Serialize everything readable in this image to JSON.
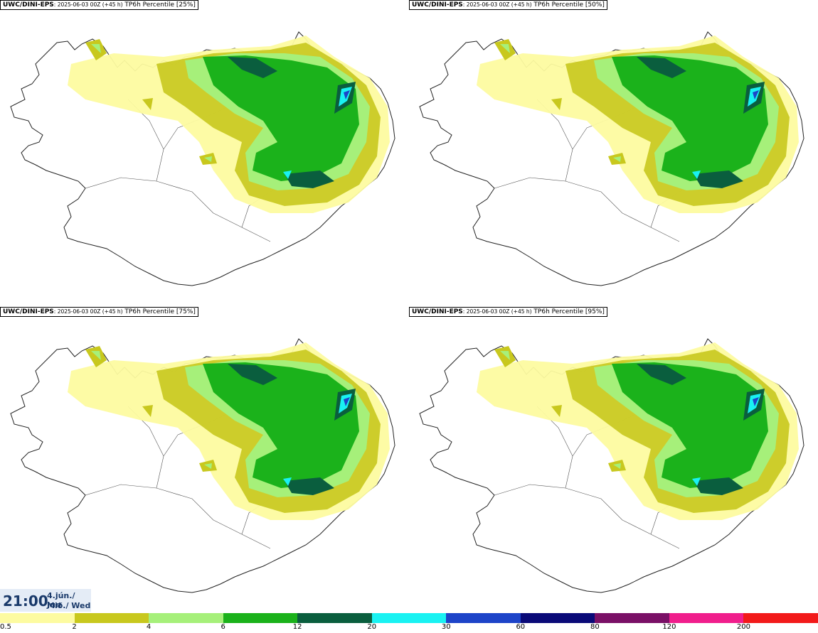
{
  "panels": [
    {
      "model": "UWC/DINI-EPS",
      "run": ": 2025-06-03 00Z (+45 h)",
      "field": " TP6h Percentile [25%]"
    },
    {
      "model": "UWC/DINI-EPS",
      "run": ": 2025-06-03 00Z (+45 h)",
      "field": " TP6h Percentile [50%]"
    },
    {
      "model": "UWC/DINI-EPS",
      "run": ": 2025-06-03 00Z (+45 h)",
      "field": " TP6h Percentile [75%]"
    },
    {
      "model": "UWC/DINI-EPS",
      "run": ": 2025-06-03 00Z (+45 h)",
      "field": " TP6h Percentile [95%]"
    }
  ],
  "valid_time": {
    "time": "21:00",
    "date": "4.jún./ Jun",
    "weekday": "Mið./ Wed"
  },
  "legend": {
    "labels": [
      "0.5",
      "2",
      "4",
      "6",
      "12",
      "20",
      "30",
      "60",
      "80",
      "120",
      "200"
    ],
    "colors": [
      "#fdfba0",
      "#c8c81e",
      "#a6f07a",
      "#1bb21b",
      "#0a5e3e",
      "#19f2f2",
      "#1d44c8",
      "#0a0a78",
      "#7a1066",
      "#f01e8c",
      "#f21a1a"
    ]
  },
  "colors": {
    "p05": "#fdfba0",
    "p2": "#c8c81e",
    "p4": "#a6f07a",
    "p6": "#1bb21b",
    "p12": "#0a5e3e",
    "p20": "#19f2f2",
    "p30": "#1d44c8",
    "coast": "#222222"
  }
}
